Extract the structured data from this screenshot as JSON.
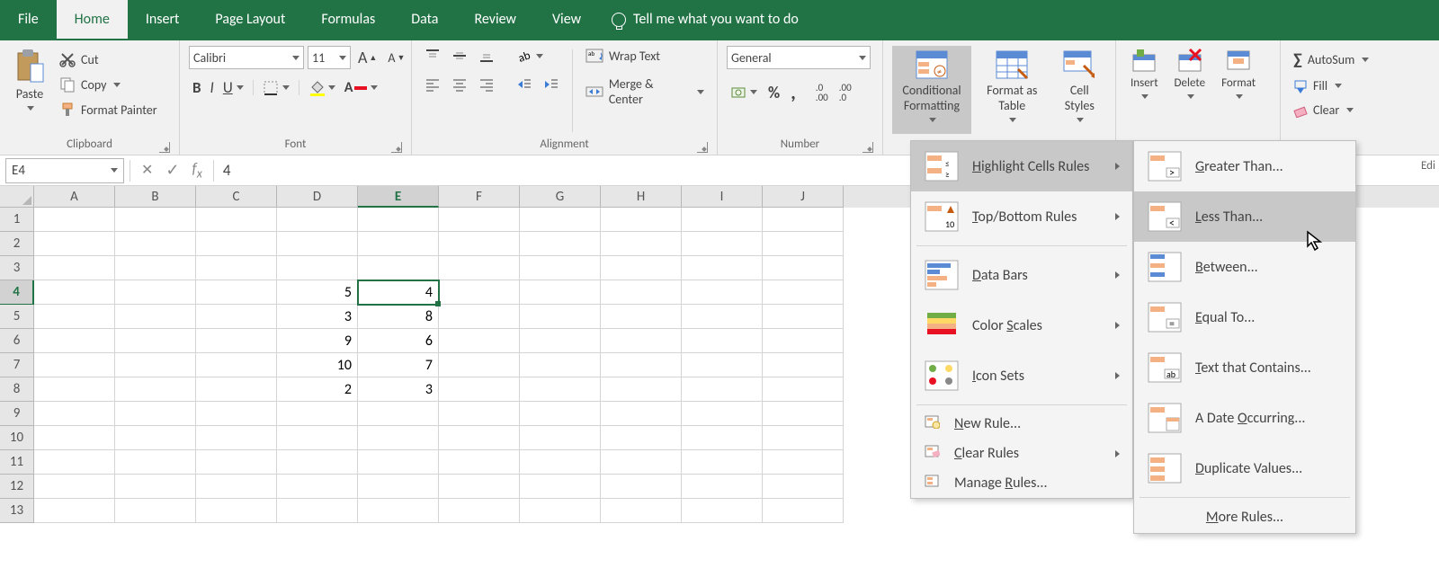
{
  "tabs": {
    "file": "File",
    "home": "Home",
    "insert": "Insert",
    "pageLayout": "Page Layout",
    "formulas": "Formulas",
    "data": "Data",
    "review": "Review",
    "view": "View"
  },
  "tellMe": "Tell me what you want to do",
  "clipboard": {
    "paste": "Paste",
    "cut": "Cut",
    "copy": "Copy",
    "formatPainter": "Format Painter",
    "label": "Clipboard"
  },
  "font": {
    "name": "Calibri",
    "size": "11",
    "label": "Font"
  },
  "alignment": {
    "wrap": "Wrap Text",
    "merge": "Merge & Center",
    "label": "Alignment"
  },
  "number": {
    "format": "General",
    "label": "Number"
  },
  "styles": {
    "condfmt": "Conditional Formatting",
    "fat": "Format as Table",
    "cellstyles": "Cell Styles"
  },
  "cellsGrp": {
    "insert": "Insert",
    "delete": "Delete",
    "format": "Format"
  },
  "editing": {
    "autosum": "AutoSum",
    "fill": "Fill",
    "clear": "Clear"
  },
  "rightEdge": "Edi",
  "nameBox": "E4",
  "formulaValue": "4",
  "columns": [
    "A",
    "B",
    "C",
    "D",
    "E",
    "F",
    "G",
    "H",
    "I",
    "J"
  ],
  "rowCount": 13,
  "selected": {
    "row": 4,
    "col": "E"
  },
  "cellData": {
    "D4": "5",
    "E4": "4",
    "D5": "3",
    "E5": "8",
    "D6": "9",
    "E6": "6",
    "D7": "10",
    "E7": "7",
    "D8": "2",
    "E8": "3"
  },
  "cfMenu": {
    "highlight": "Highlight Cells Rules",
    "topbottom": "Top/Bottom Rules",
    "databars": "Data Bars",
    "colorscales": "Color Scales",
    "iconsets": "Icon Sets",
    "newrule": "New Rule...",
    "clearrules": "Clear Rules",
    "manage": "Manage Rules..."
  },
  "hcMenu": {
    "greater": "Greater Than...",
    "less": "Less Than...",
    "between": "Between...",
    "equal": "Equal To...",
    "textcontains": "Text that Contains...",
    "dateocc": "A Date Occurring...",
    "dup": "Duplicate Values...",
    "more": "More Rules..."
  },
  "colors": {
    "excelGreen": "#217346",
    "ribbonBg": "#f1f1f1",
    "accentOrange": "#f4b183"
  }
}
